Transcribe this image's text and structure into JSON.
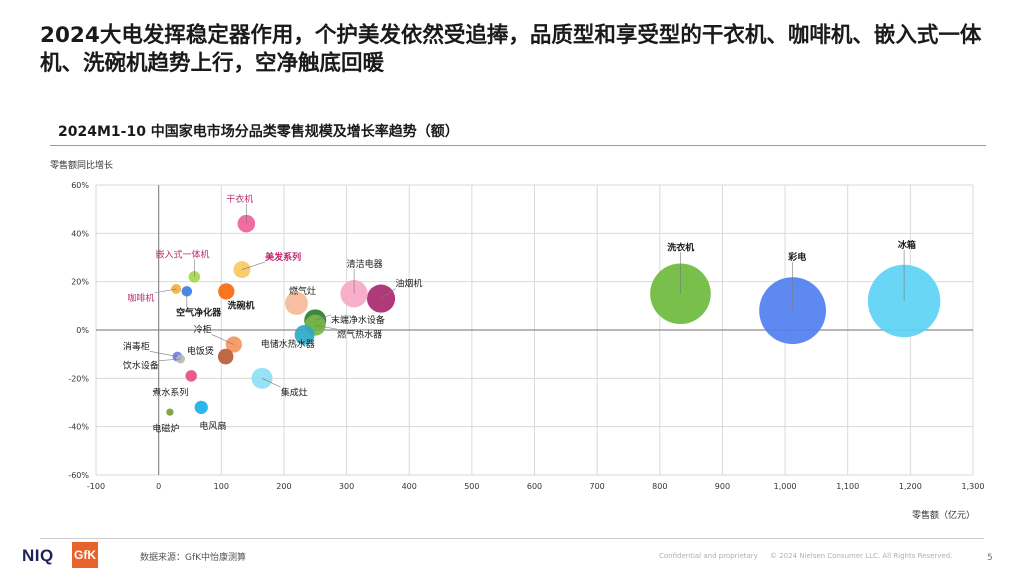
{
  "headline": "2024大电发挥稳定器作用，个护美发依然受追捧，品质型和享受型的干衣机、咖啡机、嵌入式一体机、洗碗机趋势上行，空净触底回暖",
  "footer": {
    "brand_niq": "NIQ",
    "brand_gfk": "GfK",
    "source": "数据来源：GfK中怡康测算",
    "confidential": "Confidential and proprietary",
    "copyright": "© 2024 Nielsen Consumer LLC. All Rights Reserved.",
    "page": "5"
  },
  "chart_data": {
    "type": "scatter",
    "title": "2024M1-10 中国家电市场分品类零售规模及增长率趋势（额）",
    "xlabel": "零售额（亿元）",
    "ylabel": "零售额同比增长",
    "xlim": [
      -100,
      1300
    ],
    "ylim": [
      -60,
      60
    ],
    "xticks": [
      -100,
      0,
      100,
      200,
      300,
      400,
      500,
      600,
      700,
      800,
      900,
      1000,
      1100,
      1200,
      1300
    ],
    "xtick_labels": [
      "-100",
      "0",
      "100",
      "200",
      "300",
      "400",
      "500",
      "600",
      "700",
      "800",
      "900",
      "1,000",
      "1,100",
      "1,200",
      "1,300"
    ],
    "yticks": [
      -60,
      -40,
      -20,
      0,
      20,
      40,
      60
    ],
    "ytick_labels": [
      "-60%",
      "-40%",
      "-20%",
      "0%",
      "20%",
      "40%",
      "60%"
    ],
    "points": [
      {
        "name": "冰箱",
        "x": 1190,
        "y": 12,
        "size": 1190,
        "color": "#5cd3f5",
        "label_color": "#1a1a1a",
        "bold": true,
        "label_x": 1180,
        "label_y": 34
      },
      {
        "name": "彩电",
        "x": 1012,
        "y": 8,
        "size": 1012,
        "color": "#4f7ff0",
        "label_color": "#1a1a1a",
        "bold": true,
        "label_x": 1005,
        "label_y": 29
      },
      {
        "name": "洗衣机",
        "x": 833,
        "y": 15,
        "size": 833,
        "color": "#6cbb3c",
        "label_color": "#1a1a1a",
        "bold": true,
        "label_x": 812,
        "label_y": 33
      },
      {
        "name": "油烟机",
        "x": 355,
        "y": 13,
        "size": 180,
        "color": "#a8286e",
        "label_color": "#1a1a1a",
        "bold": false,
        "label_x": 378,
        "label_y": 18
      },
      {
        "name": "清洁电器",
        "x": 312,
        "y": 15,
        "size": 170,
        "color": "#f7a8c4",
        "label_color": "#1a1a1a",
        "bold": false,
        "label_x": 300,
        "label_y": 26
      },
      {
        "name": "燃气灶",
        "x": 220,
        "y": 11,
        "size": 120,
        "color": "#f7b89a",
        "label_color": "#1a1a1a",
        "bold": false,
        "label_x": 208,
        "label_y": 15
      },
      {
        "name": "末端净水设备",
        "x": 250,
        "y": 4,
        "size": 110,
        "color": "#2e7d32",
        "label_color": "#1a1a1a",
        "bold": false,
        "label_x": 275,
        "label_y": 3
      },
      {
        "name": "燃气热水器",
        "x": 250,
        "y": 2,
        "size": 100,
        "color": "#7ab648",
        "label_color": "#1a1a1a",
        "bold": false,
        "label_x": 285,
        "label_y": -3
      },
      {
        "name": "电储水热水器",
        "x": 233,
        "y": -2,
        "size": 90,
        "color": "#2fa8c8",
        "label_color": "#1a1a1a",
        "bold": false,
        "label_x": 163,
        "label_y": -7
      },
      {
        "name": "集成灶",
        "x": 165,
        "y": -20,
        "size": 100,
        "color": "#8de0f5",
        "label_color": "#1a1a1a",
        "bold": false,
        "label_x": 195,
        "label_y": -27
      },
      {
        "name": "干衣机",
        "x": 140,
        "y": 44,
        "size": 70,
        "color": "#f0609a",
        "label_color": "#c0286e",
        "bold": false,
        "label_x": 108,
        "label_y": 53
      },
      {
        "name": "美发系列",
        "x": 133,
        "y": 25,
        "size": 65,
        "color": "#f9c860",
        "label_color": "#c0286e",
        "bold": true,
        "label_x": 170,
        "label_y": 29
      },
      {
        "name": "洗碗机",
        "x": 108,
        "y": 16,
        "size": 60,
        "color": "#f56a0f",
        "label_color": "#1a1a1a",
        "bold": true,
        "label_x": 110,
        "label_y": 9
      },
      {
        "name": "嵌入式一体机",
        "x": 57,
        "y": 22,
        "size": 30,
        "color": "#a5d84a",
        "label_color": "#c0286e",
        "bold": false,
        "label_x": -5,
        "label_y": 30
      },
      {
        "name": "咖啡机",
        "x": 28,
        "y": 17,
        "size": 22,
        "color": "#f0b040",
        "label_color": "#c0286e",
        "bold": false,
        "label_x": -50,
        "label_y": 12
      },
      {
        "name": "空气净化器",
        "x": 45,
        "y": 16,
        "size": 25,
        "color": "#3a7ee8",
        "label_color": "#1a1a1a",
        "bold": true,
        "label_x": 28,
        "label_y": 6
      },
      {
        "name": "冷柜",
        "x": 120,
        "y": -6,
        "size": 60,
        "color": "#f49560",
        "label_color": "#1a1a1a",
        "bold": false,
        "label_x": 56,
        "label_y": -1
      },
      {
        "name": "电饭煲",
        "x": 107,
        "y": -11,
        "size": 55,
        "color": "#b85c38",
        "label_color": "#1a1a1a",
        "bold": false,
        "label_x": 45,
        "label_y": -10
      },
      {
        "name": "消毒柜",
        "x": 30,
        "y": -11,
        "size": 22,
        "color": "#6e7ee8",
        "label_color": "#1a1a1a",
        "bold": false,
        "label_x": -57,
        "label_y": -8
      },
      {
        "name": "饮水设备",
        "x": 35,
        "y": -12,
        "size": 18,
        "color": "#b8b8b8",
        "label_color": "#1a1a1a",
        "bold": false,
        "label_x": -57,
        "label_y": -16
      },
      {
        "name": "煮水系列",
        "x": 52,
        "y": -19,
        "size": 30,
        "color": "#ea4c89",
        "label_color": "#1a1a1a",
        "bold": false,
        "label_x": -10,
        "label_y": -27
      },
      {
        "name": "电风扇",
        "x": 68,
        "y": -32,
        "size": 40,
        "color": "#1ab0e8",
        "label_color": "#1a1a1a",
        "bold": false,
        "label_x": 65,
        "label_y": -41
      },
      {
        "name": "电磁炉",
        "x": 18,
        "y": -34,
        "size": 12,
        "color": "#7a9e3a",
        "label_color": "#1a1a1a",
        "bold": false,
        "label_x": -10,
        "label_y": -42
      }
    ]
  }
}
